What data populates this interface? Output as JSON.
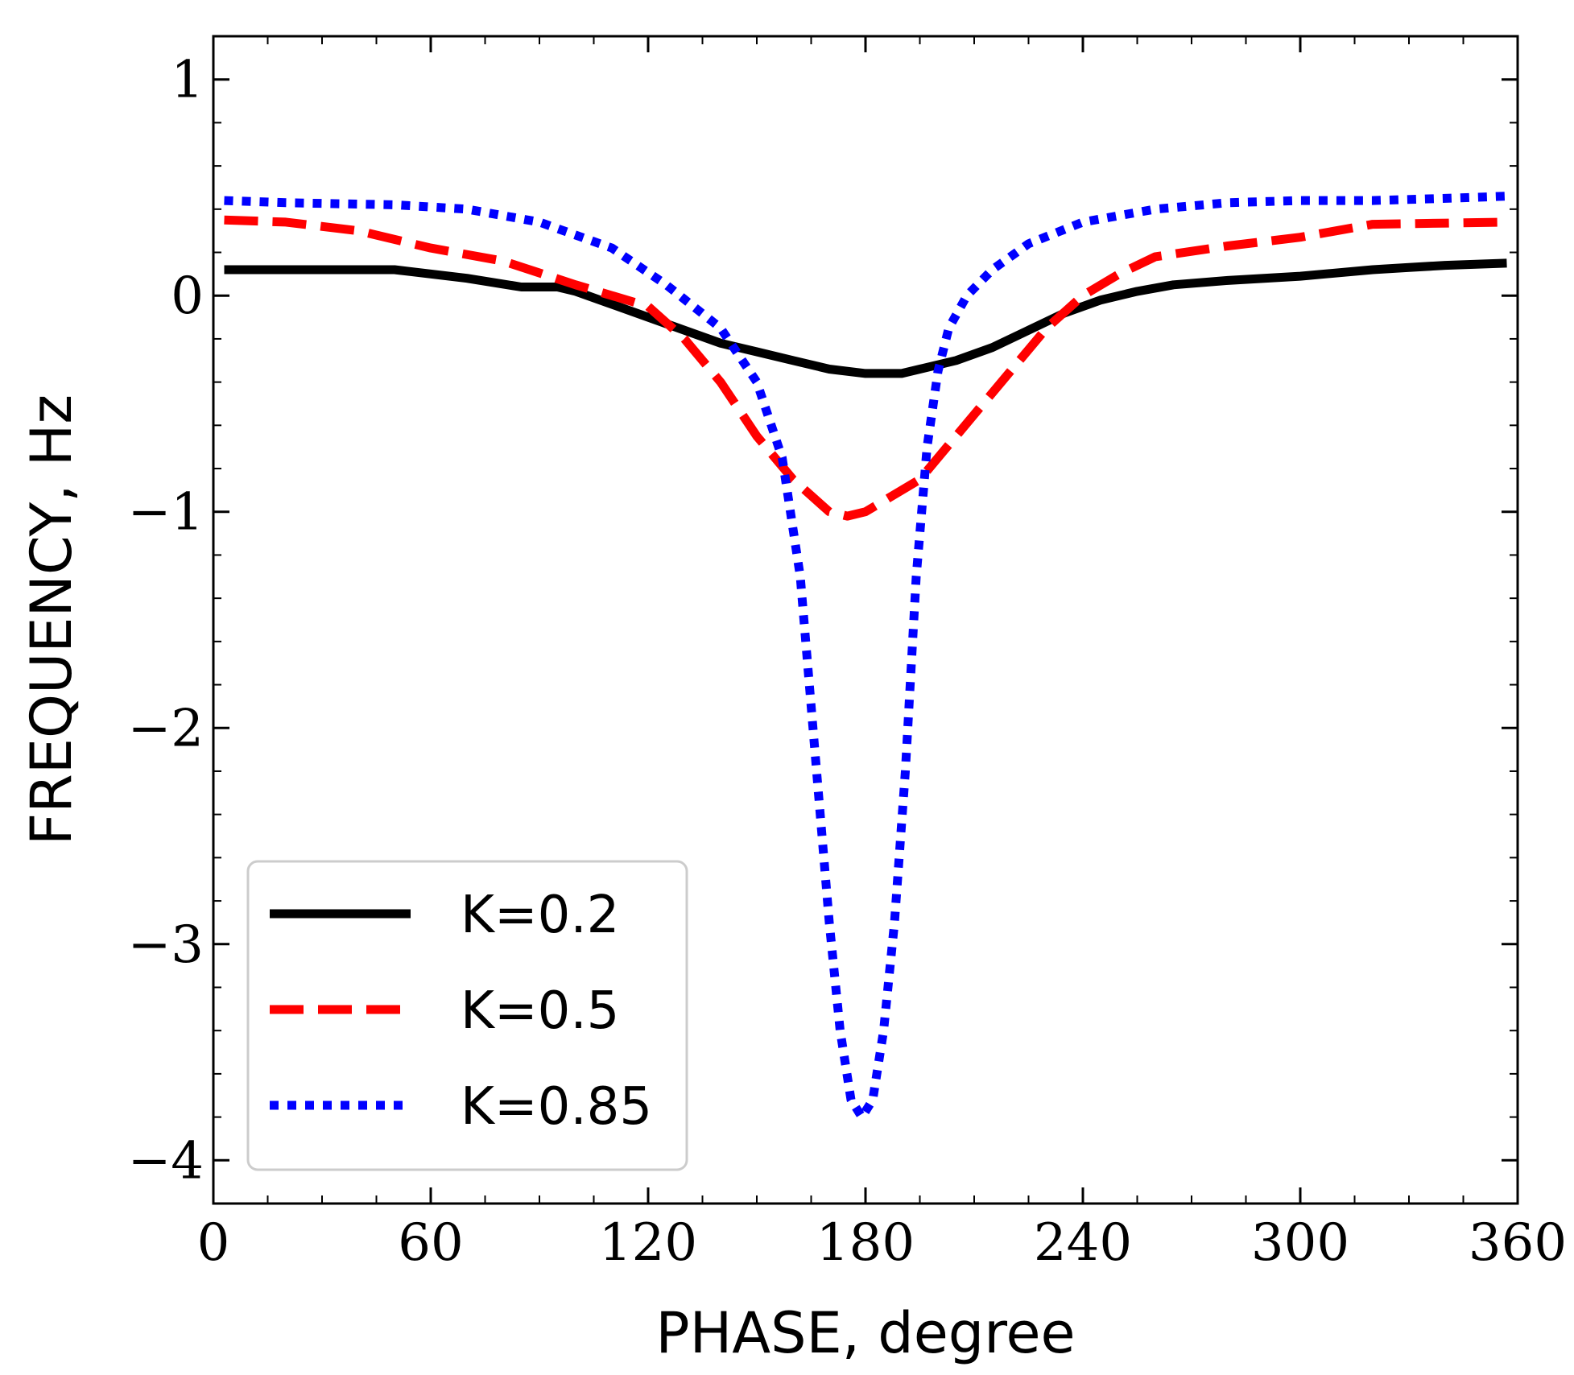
{
  "chart_data": {
    "type": "line",
    "title": "",
    "xlabel": "PHASE, degree",
    "ylabel": "FREQUENCY, Hz",
    "xlim": [
      0,
      360
    ],
    "ylim": [
      -4.2,
      1.2
    ],
    "xticks": [
      0,
      60,
      120,
      180,
      240,
      300,
      360
    ],
    "xtick_labels": [
      "0",
      "60",
      "120",
      "180",
      "240",
      "300",
      "360"
    ],
    "yticks": [
      1,
      0,
      -1,
      -2,
      -3,
      -4
    ],
    "ytick_labels": [
      "1",
      "0",
      "−1",
      "−2",
      "−3",
      "−4"
    ],
    "grid": false,
    "legend_position": "lower-left",
    "series": [
      {
        "name": "K=0.2",
        "color": "#000000",
        "style": "solid",
        "x": [
          3,
          20,
          50,
          70,
          85,
          95,
          100,
          110,
          120,
          130,
          140,
          150,
          160,
          170,
          180,
          190,
          195,
          205,
          215,
          225,
          235,
          245,
          255,
          265,
          280,
          300,
          320,
          330,
          340,
          357
        ],
        "y": [
          0.12,
          0.12,
          0.12,
          0.08,
          0.04,
          0.04,
          0.02,
          -0.04,
          -0.1,
          -0.16,
          -0.22,
          -0.26,
          -0.3,
          -0.34,
          -0.36,
          -0.36,
          -0.34,
          -0.3,
          -0.24,
          -0.16,
          -0.08,
          -0.02,
          0.02,
          0.05,
          0.07,
          0.09,
          0.12,
          0.13,
          0.14,
          0.15
        ]
      },
      {
        "name": "K=0.5",
        "color": "#ff0000",
        "style": "dashed",
        "x": [
          3,
          20,
          40,
          60,
          80,
          100,
          120,
          130,
          140,
          150,
          160,
          170,
          175,
          180,
          185,
          195,
          200,
          210,
          220,
          230,
          240,
          250,
          260,
          280,
          300,
          320,
          357
        ],
        "y": [
          0.35,
          0.34,
          0.3,
          0.22,
          0.16,
          0.05,
          -0.05,
          -0.2,
          -0.4,
          -0.65,
          -0.85,
          -1.0,
          -1.02,
          -1.0,
          -0.95,
          -0.85,
          -0.75,
          -0.55,
          -0.35,
          -0.15,
          0.0,
          0.1,
          0.18,
          0.23,
          0.27,
          0.33,
          0.34
        ]
      },
      {
        "name": "K=0.85",
        "color": "#0000ff",
        "style": "dotted",
        "x": [
          3,
          20,
          50,
          70,
          90,
          110,
          125,
          140,
          150,
          157,
          162,
          166,
          170,
          173,
          176,
          179,
          182,
          185,
          188,
          191,
          194,
          197,
          200,
          203,
          208,
          215,
          225,
          240,
          260,
          280,
          300,
          320,
          340,
          357
        ],
        "y": [
          0.44,
          0.43,
          0.42,
          0.4,
          0.34,
          0.22,
          0.05,
          -0.15,
          -0.4,
          -0.75,
          -1.3,
          -2.1,
          -2.9,
          -3.4,
          -3.72,
          -3.8,
          -3.72,
          -3.4,
          -2.9,
          -2.2,
          -1.3,
          -0.7,
          -0.35,
          -0.15,
          0.0,
          0.12,
          0.24,
          0.34,
          0.4,
          0.43,
          0.44,
          0.44,
          0.45,
          0.46
        ]
      }
    ]
  }
}
